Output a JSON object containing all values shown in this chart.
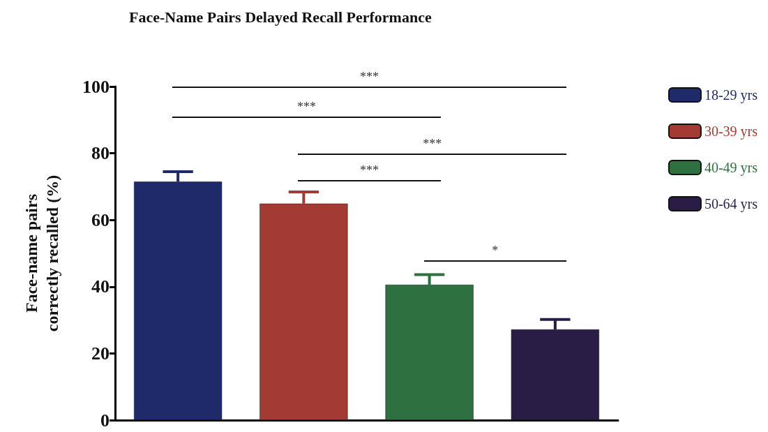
{
  "chart_data": {
    "type": "bar",
    "title": "Face-Name Pairs Delayed Recall Performance",
    "ylabel": "Face-name pairs\ncorrectly recalled (%)",
    "categories": [
      null,
      null,
      null,
      null
    ],
    "series": [
      {
        "name": "18-29 yrs",
        "color": "#1f2a6b",
        "values": [
          71.5,
          null,
          null,
          null
        ],
        "errors": [
          [
            71.5,
            74.5
          ],
          null,
          null,
          null
        ]
      },
      {
        "name": "30-39 yrs",
        "color": "#a33a33",
        "values": [
          null,
          64.9,
          null,
          null
        ],
        "errors": [
          null,
          [
            64.9,
            68.4
          ],
          null,
          null
        ]
      },
      {
        "name": "40-49 yrs",
        "color": "#2e7040",
        "values": [
          null,
          null,
          40.6,
          null
        ],
        "errors": [
          null,
          null,
          [
            40.6,
            43.6
          ],
          null
        ]
      },
      {
        "name": "50-64 yrs",
        "color": "#2a1d45",
        "values": [
          null,
          null,
          null,
          27.2
        ],
        "errors": [
          null,
          null,
          null,
          [
            27.2,
            30.2
          ]
        ]
      }
    ],
    "ylim": [
      0,
      100
    ],
    "yticks": [
      0,
      20,
      40,
      60,
      80,
      100
    ],
    "legend": "right",
    "grid": false,
    "annotations": [
      "***",
      "***",
      "***",
      "***",
      "*"
    ]
  }
}
